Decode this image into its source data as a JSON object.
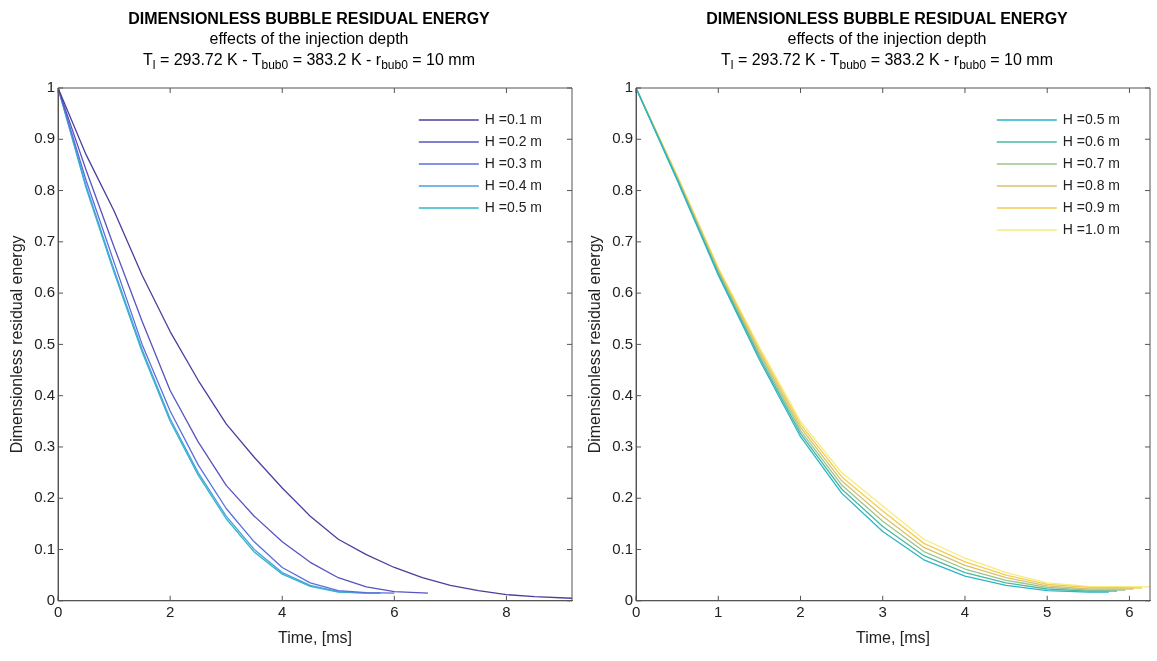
{
  "chart_data": [
    {
      "type": "line",
      "title": "DIMENSIONLESS BUBBLE RESIDUAL ENERGY",
      "subtitle": "effects of the injection depth\nT$_{l}$ = 293.72 K - T$_{bub0}$ = 383.2 K - r$_{bub0}$ = 10 mm",
      "xlabel": "Time, [ms]",
      "ylabel": "Dimensionless residual energy",
      "xlim": [
        0,
        9.17
      ],
      "xticks": [
        0,
        2,
        4,
        6,
        8
      ],
      "ylim": [
        0,
        1
      ],
      "yticks": [
        0,
        0.1,
        0.2,
        0.3,
        0.4,
        0.5,
        0.6,
        0.7,
        0.8,
        0.9,
        1
      ],
      "legend": "top right",
      "series": [
        {
          "name": "H =0.1 m",
          "color": "#4b3f9e",
          "x": [
            0,
            0.5,
            1,
            1.5,
            2,
            2.5,
            3,
            3.5,
            4,
            4.5,
            5,
            5.5,
            6,
            6.5,
            7,
            7.5,
            8,
            8.5,
            9.17
          ],
          "values": [
            1,
            0.87,
            0.76,
            0.635,
            0.525,
            0.43,
            0.345,
            0.28,
            0.22,
            0.165,
            0.12,
            0.09,
            0.065,
            0.045,
            0.03,
            0.02,
            0.012,
            0.008,
            0.005
          ]
        },
        {
          "name": "H =0.2 m",
          "color": "#5853c0",
          "x": [
            0,
            0.5,
            1,
            1.5,
            2,
            2.5,
            3,
            3.5,
            4,
            4.5,
            5,
            5.5,
            6,
            6.6
          ],
          "values": [
            1,
            0.84,
            0.69,
            0.545,
            0.41,
            0.31,
            0.225,
            0.165,
            0.115,
            0.075,
            0.045,
            0.027,
            0.018,
            0.015
          ]
        },
        {
          "name": "H =0.3 m",
          "color": "#5b6fd8",
          "x": [
            0,
            0.5,
            1,
            1.5,
            2,
            2.5,
            3,
            3.5,
            4,
            4.5,
            5,
            5.5,
            6
          ],
          "values": [
            1,
            0.82,
            0.66,
            0.5,
            0.37,
            0.265,
            0.18,
            0.115,
            0.065,
            0.035,
            0.02,
            0.016,
            0.015
          ]
        },
        {
          "name": "H =0.4 m",
          "color": "#4aa0e0",
          "x": [
            0,
            0.5,
            1,
            1.5,
            2,
            2.5,
            3,
            3.5,
            4,
            4.5,
            5,
            5.5,
            5.75
          ],
          "values": [
            1,
            0.81,
            0.645,
            0.49,
            0.355,
            0.25,
            0.165,
            0.1,
            0.055,
            0.03,
            0.018,
            0.015,
            0.015
          ]
        },
        {
          "name": "H =0.5 m",
          "color": "#2fb8c8",
          "x": [
            0,
            0.5,
            1,
            1.5,
            2,
            2.5,
            3,
            3.5,
            4,
            4.5,
            5,
            5.5,
            5.75
          ],
          "values": [
            1,
            0.805,
            0.64,
            0.485,
            0.35,
            0.245,
            0.16,
            0.095,
            0.052,
            0.028,
            0.017,
            0.015,
            0.015
          ]
        }
      ]
    },
    {
      "type": "line",
      "title": "DIMENSIONLESS BUBBLE RESIDUAL ENERGY",
      "subtitle": "effects of the injection depth\nT$_{l}$ = 293.72 K - T$_{bub0}$ = 383.2 K - r$_{bub0}$ = 10 mm",
      "xlabel": "Time, [ms]",
      "ylabel": "Dimensionless residual energy",
      "xlim": [
        0,
        6.25
      ],
      "xticks": [
        0,
        1,
        2,
        3,
        4,
        5,
        6
      ],
      "ylim": [
        0,
        1
      ],
      "yticks": [
        0,
        0.1,
        0.2,
        0.3,
        0.4,
        0.5,
        0.6,
        0.7,
        0.8,
        0.9,
        1
      ],
      "legend": "top right",
      "series": [
        {
          "name": "H =0.5 m",
          "color": "#2bb5c8",
          "x": [
            0,
            0.5,
            1,
            1.5,
            2,
            2.5,
            3,
            3.5,
            4,
            4.5,
            5,
            5.5,
            5.75
          ],
          "values": [
            1,
            0.82,
            0.635,
            0.47,
            0.32,
            0.21,
            0.135,
            0.08,
            0.048,
            0.03,
            0.02,
            0.017,
            0.017
          ]
        },
        {
          "name": "H =0.6 m",
          "color": "#4ab8a0",
          "x": [
            0,
            0.5,
            1,
            1.5,
            2,
            2.5,
            3,
            3.5,
            4,
            4.5,
            5,
            5.5,
            5.85
          ],
          "values": [
            1,
            0.822,
            0.638,
            0.475,
            0.326,
            0.218,
            0.145,
            0.088,
            0.055,
            0.035,
            0.023,
            0.019,
            0.019
          ]
        },
        {
          "name": "H =0.7 m",
          "color": "#9cc48a",
          "x": [
            0,
            0.5,
            1,
            1.5,
            2,
            2.5,
            3,
            3.5,
            4,
            4.5,
            5,
            5.5,
            5.95
          ],
          "values": [
            1,
            0.824,
            0.641,
            0.48,
            0.332,
            0.226,
            0.155,
            0.096,
            0.062,
            0.04,
            0.026,
            0.021,
            0.021
          ]
        },
        {
          "name": "H =0.8 m",
          "color": "#d8c070",
          "x": [
            0,
            0.5,
            1,
            1.5,
            2,
            2.5,
            3,
            3.5,
            4,
            4.5,
            5,
            5.5,
            6.05
          ],
          "values": [
            1,
            0.826,
            0.644,
            0.485,
            0.338,
            0.234,
            0.165,
            0.104,
            0.069,
            0.045,
            0.029,
            0.023,
            0.023
          ]
        },
        {
          "name": "H =0.9 m",
          "color": "#f3cc50",
          "x": [
            0,
            0.5,
            1,
            1.5,
            2,
            2.5,
            3,
            3.5,
            4,
            4.5,
            5,
            5.5,
            6.15
          ],
          "values": [
            1,
            0.828,
            0.647,
            0.49,
            0.344,
            0.242,
            0.175,
            0.112,
            0.076,
            0.05,
            0.032,
            0.026,
            0.025
          ]
        },
        {
          "name": "H =1.0 m",
          "color": "#f6ec7a",
          "x": [
            0,
            0.5,
            1,
            1.5,
            2,
            2.5,
            3,
            3.5,
            4,
            4.5,
            5,
            5.5,
            6.25
          ],
          "values": [
            1,
            0.83,
            0.65,
            0.495,
            0.35,
            0.25,
            0.185,
            0.12,
            0.083,
            0.055,
            0.035,
            0.028,
            0.027
          ]
        }
      ]
    }
  ]
}
